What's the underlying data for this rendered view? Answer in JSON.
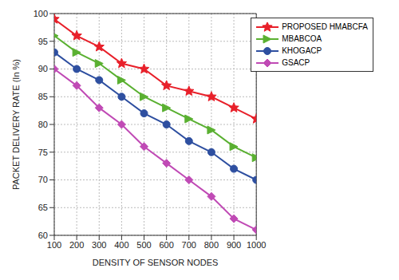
{
  "chart_data": {
    "type": "line",
    "x_label": "DENSITY OF SENSOR NODES",
    "y_label": "PACKET DELIVERY RATE (In %)",
    "x": [
      100,
      200,
      300,
      400,
      500,
      600,
      700,
      800,
      900,
      1000
    ],
    "xlim": [
      100,
      1000
    ],
    "xticks": [
      100,
      200,
      300,
      400,
      500,
      600,
      700,
      800,
      900,
      1000
    ],
    "ylim": [
      60,
      100
    ],
    "yticks": [
      60,
      65,
      70,
      75,
      80,
      85,
      90,
      95,
      100
    ],
    "grid": true,
    "legend": "upper right",
    "series": [
      {
        "name": "PROPOSED HMABCFA",
        "color": "#e8202a",
        "marker": "star",
        "values": [
          99,
          96,
          94,
          91,
          90,
          87,
          86,
          85,
          83,
          81
        ]
      },
      {
        "name": "MBABCOA",
        "color": "#5ab031",
        "marker": "triangle",
        "values": [
          96,
          93,
          91,
          88,
          85,
          83,
          81,
          79,
          76,
          74
        ]
      },
      {
        "name": "KHOGACP",
        "color": "#2e4fa0",
        "marker": "circle",
        "values": [
          93,
          90,
          88,
          85,
          82,
          80,
          77,
          75,
          72,
          70
        ]
      },
      {
        "name": "GSACP",
        "color": "#c04ab5",
        "marker": "diamond",
        "values": [
          90,
          87,
          83,
          80,
          76,
          73,
          70,
          67,
          63,
          61
        ]
      }
    ]
  }
}
